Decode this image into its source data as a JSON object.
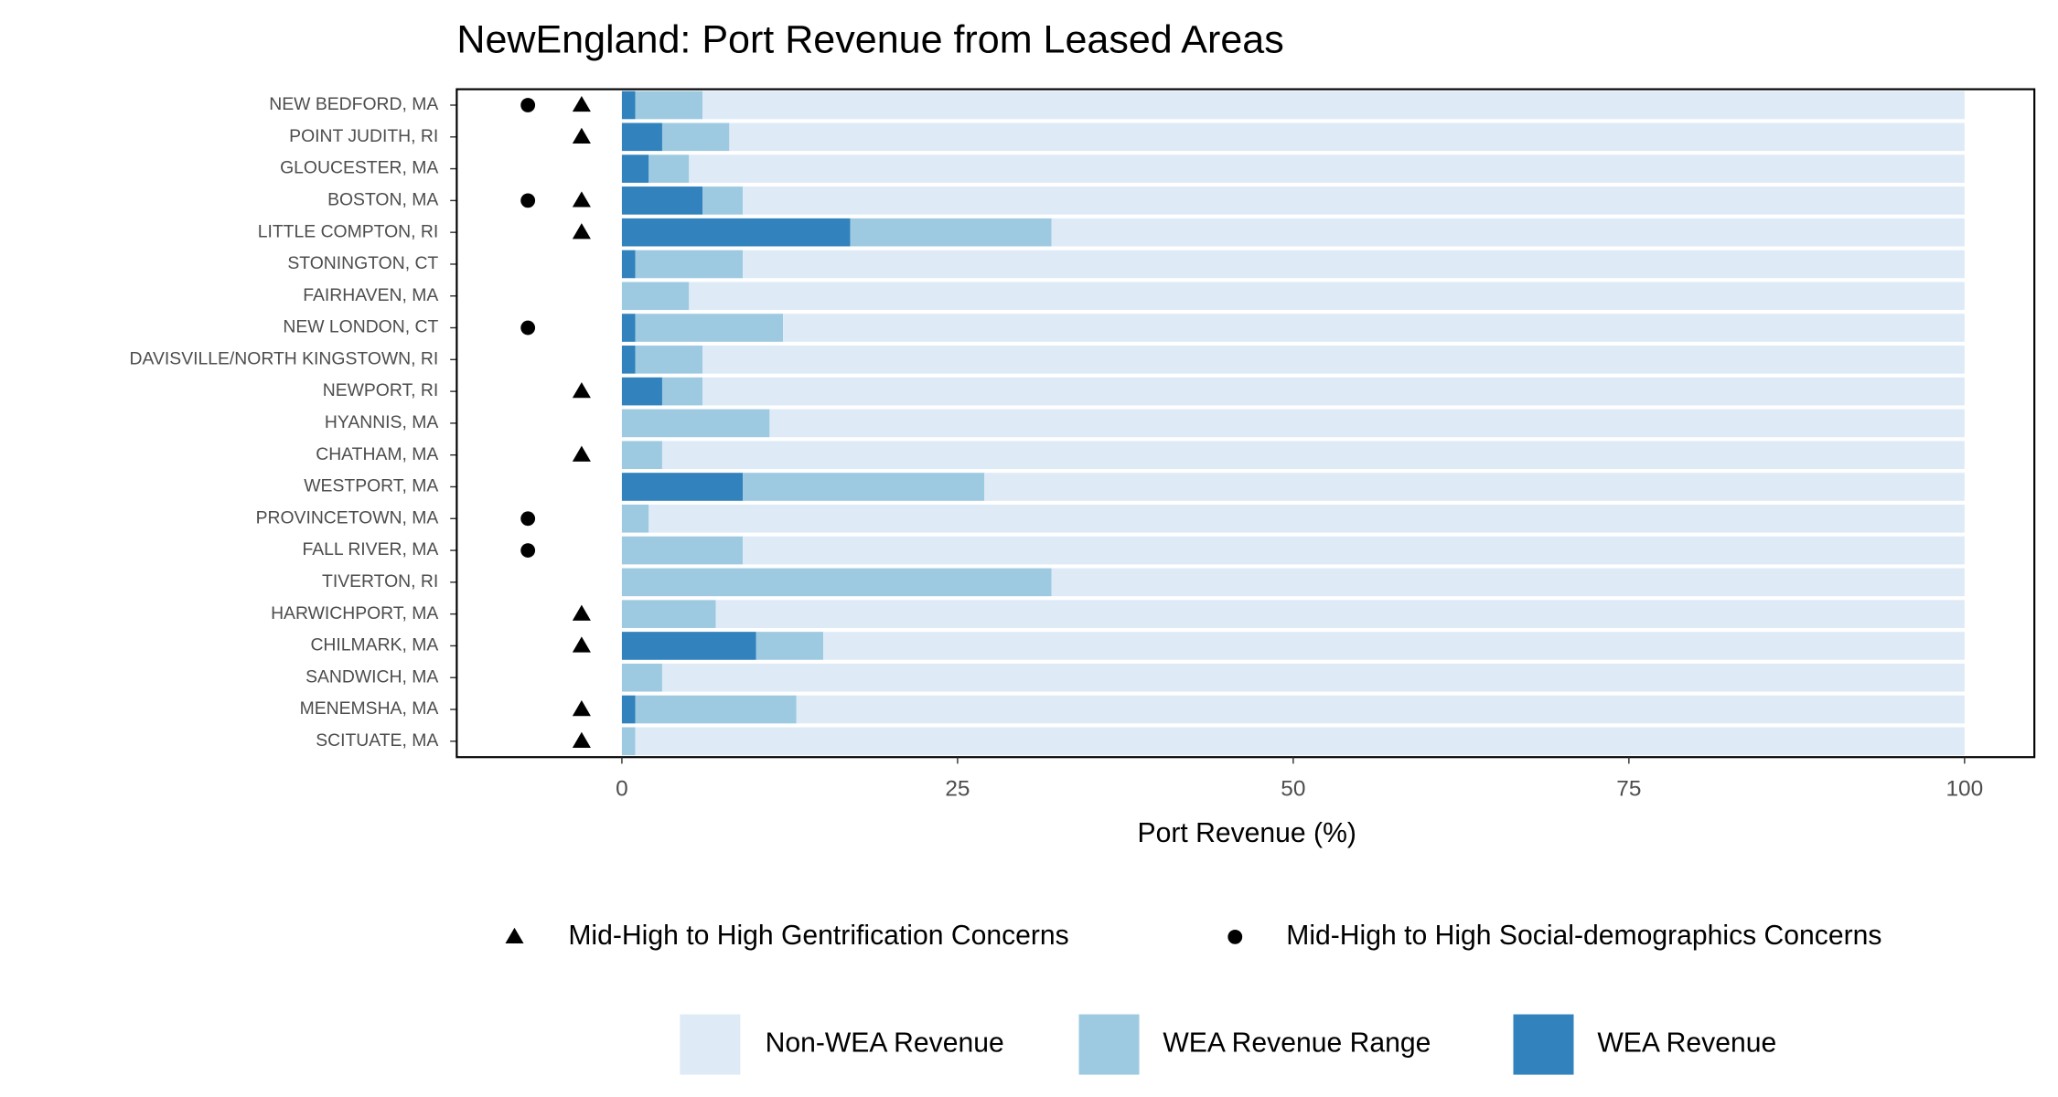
{
  "chart_data": {
    "type": "bar",
    "orientation": "horizontal",
    "stacked": true,
    "title": "NewEngland: Port Revenue from Leased Areas",
    "x_label": "Port Revenue (%)",
    "categories": [
      "NEW BEDFORD, MA",
      "POINT JUDITH, RI",
      "GLOUCESTER, MA",
      "BOSTON, MA",
      "LITTLE COMPTON, RI",
      "STONINGTON, CT",
      "FAIRHAVEN, MA",
      "NEW LONDON, CT",
      "DAVISVILLE/NORTH KINGSTOWN, RI",
      "NEWPORT, RI",
      "HYANNIS, MA",
      "CHATHAM, MA",
      "WESTPORT, MA",
      "PROVINCETOWN, MA",
      "FALL RIVER, MA",
      "TIVERTON, RI",
      "HARWICHPORT, MA",
      "CHILMARK, MA",
      "SANDWICH, MA",
      "MENEMSHA, MA",
      "SCITUATE, MA"
    ],
    "series": [
      {
        "name": "WEA Revenue",
        "color": "#3182bd",
        "values": [
          1,
          3,
          2,
          6,
          17,
          1,
          0,
          1,
          1,
          3,
          0,
          0,
          9,
          0,
          0,
          0,
          0,
          10,
          0,
          1,
          0
        ]
      },
      {
        "name": "WEA Revenue Range",
        "color": "#9ecae1",
        "values": [
          5,
          5,
          3,
          3,
          15,
          8,
          5,
          11,
          5,
          3,
          11,
          3,
          18,
          2,
          9,
          32,
          7,
          5,
          3,
          12,
          1
        ]
      },
      {
        "name": "Non-WEA Revenue",
        "color": "#deebf7",
        "values": [
          94,
          92,
          95,
          91,
          68,
          91,
          95,
          88,
          94,
          94,
          89,
          97,
          73,
          98,
          91,
          68,
          93,
          85,
          97,
          87,
          99
        ]
      }
    ],
    "markers": [
      {
        "name": "Mid-High to High Gentrification Concerns",
        "shape": "triangle",
        "color": "#000000",
        "values": [
          -3,
          -3,
          null,
          -3,
          -3,
          null,
          null,
          null,
          null,
          -3,
          null,
          -3,
          null,
          null,
          null,
          null,
          -3,
          -3,
          null,
          -3,
          -3
        ]
      },
      {
        "name": "Mid-High to High Social-demographics Concerns",
        "shape": "circle",
        "color": "#000000",
        "values": [
          -7,
          null,
          null,
          -7,
          null,
          null,
          null,
          -7,
          null,
          null,
          null,
          null,
          null,
          -7,
          -7,
          null,
          null,
          null,
          null,
          null,
          null
        ]
      }
    ],
    "xlim": [
      -12.3,
      105.2
    ],
    "xticks": [
      0,
      25,
      50,
      75,
      100
    ],
    "grid": false
  }
}
